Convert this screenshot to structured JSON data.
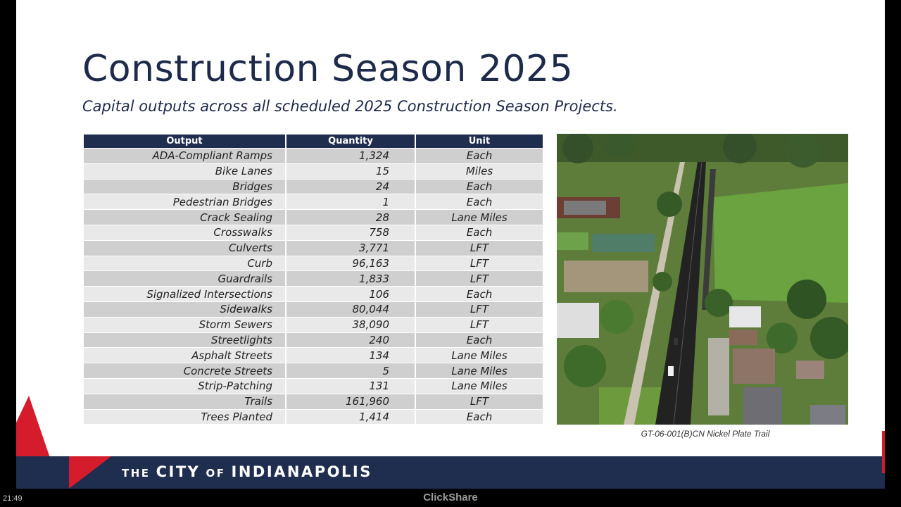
{
  "slide": {
    "title": "Construction Season 2025",
    "subtitle": "Capital outputs across all scheduled 2025 Construction Season Projects."
  },
  "table": {
    "headers": [
      "Output",
      "Quantity",
      "Unit"
    ],
    "rows": [
      {
        "output": "ADA-Compliant Ramps",
        "quantity": "1,324",
        "unit": "Each"
      },
      {
        "output": "Bike Lanes",
        "quantity": "15",
        "unit": "Miles"
      },
      {
        "output": "Bridges",
        "quantity": "24",
        "unit": "Each"
      },
      {
        "output": "Pedestrian Bridges",
        "quantity": "1",
        "unit": "Each"
      },
      {
        "output": "Crack Sealing",
        "quantity": "28",
        "unit": "Lane Miles"
      },
      {
        "output": "Crosswalks",
        "quantity": "758",
        "unit": "Each"
      },
      {
        "output": "Culverts",
        "quantity": "3,771",
        "unit": "LFT"
      },
      {
        "output": "Curb",
        "quantity": "96,163",
        "unit": "LFT"
      },
      {
        "output": "Guardrails",
        "quantity": "1,833",
        "unit": "LFT"
      },
      {
        "output": "Signalized Intersections",
        "quantity": "106",
        "unit": "Each"
      },
      {
        "output": "Sidewalks",
        "quantity": "80,044",
        "unit": "LFT"
      },
      {
        "output": "Storm Sewers",
        "quantity": "38,090",
        "unit": "LFT"
      },
      {
        "output": "Streetlights",
        "quantity": "240",
        "unit": "Each"
      },
      {
        "output": "Asphalt Streets",
        "quantity": "134",
        "unit": "Lane Miles"
      },
      {
        "output": "Concrete Streets",
        "quantity": "5",
        "unit": "Lane Miles"
      },
      {
        "output": "Strip-Patching",
        "quantity": "131",
        "unit": "Lane Miles"
      },
      {
        "output": "Trails",
        "quantity": "161,960",
        "unit": "LFT"
      },
      {
        "output": "Trees Planted",
        "quantity": "1,414",
        "unit": "Each"
      }
    ]
  },
  "photo": {
    "caption": "GT-06-001(B)CN Nickel Plate Trail"
  },
  "footer": {
    "the": "THE",
    "city": "CITY",
    "of": "OF",
    "name": "INDIANAPOLIS"
  },
  "taskbar": {
    "clock": "21:49",
    "app_label": "ClickShare"
  },
  "colors": {
    "navy": "#1f2d4f",
    "red": "#d51c2c",
    "row_dark": "#cfcfcf",
    "row_light": "#e9e9e9"
  }
}
